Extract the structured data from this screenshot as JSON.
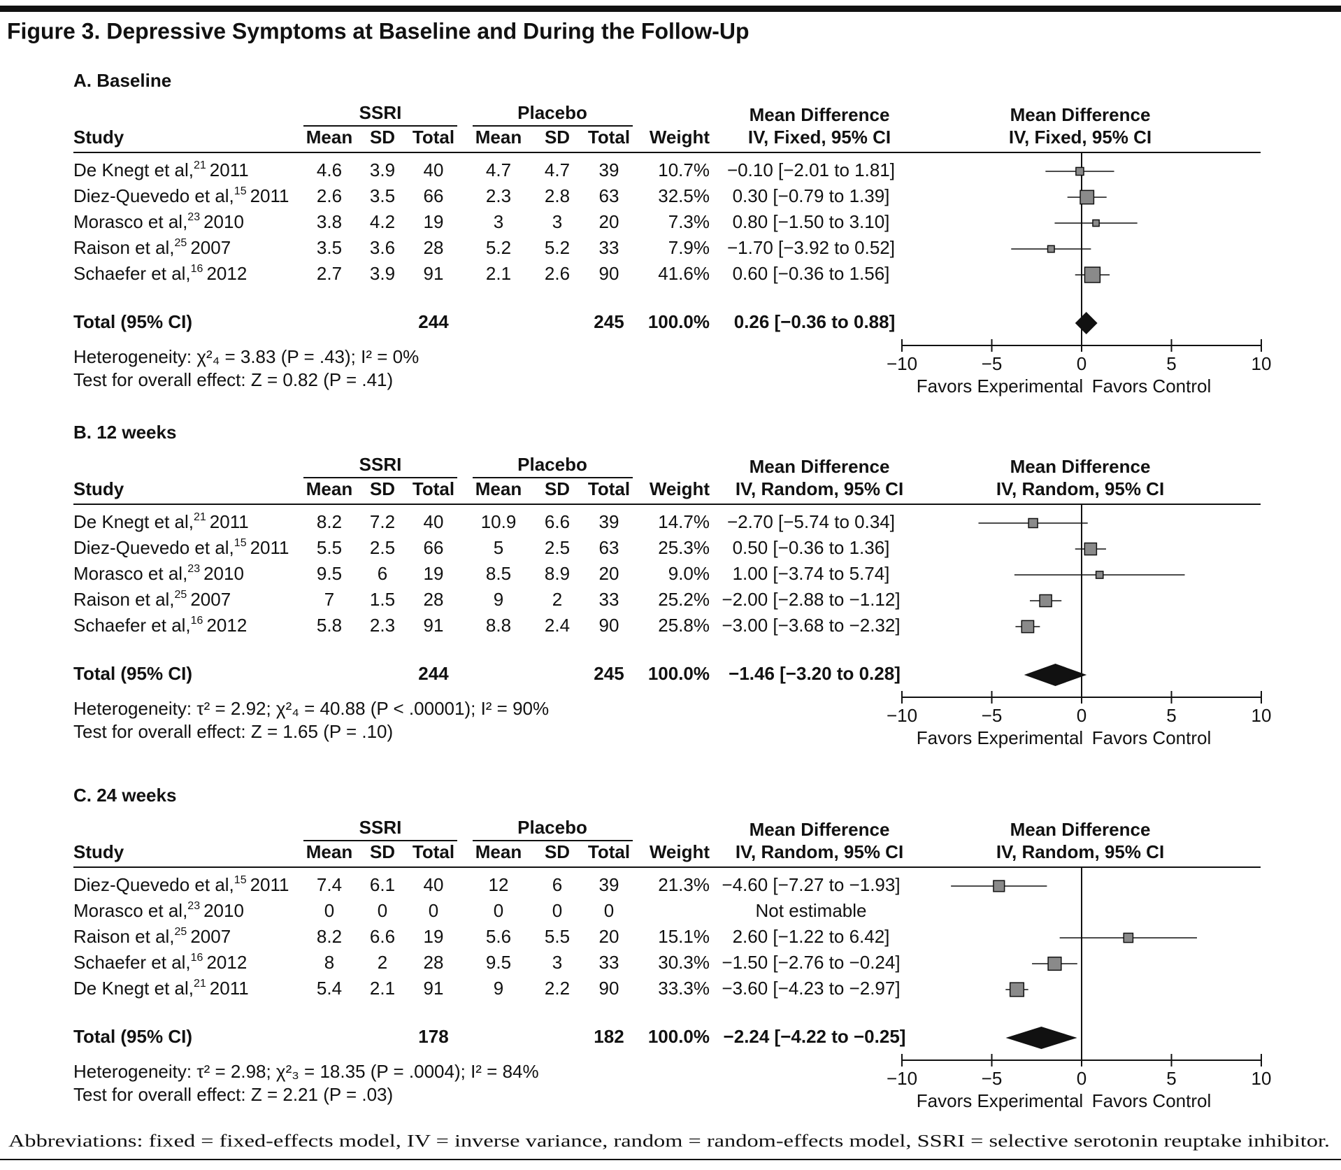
{
  "title": "Figure 3. Depressive Symptoms at Baseline and During the Follow-Up",
  "footnote": "Abbreviations: fixed = fixed-effects model, IV = inverse variance, random = random-effects model, SSRI = selective serotonin reuptake inhibitor.",
  "chart_data": [
    {
      "type": "forest",
      "title": "A. Baseline",
      "columns": {
        "study": "Study",
        "group1": "SSRI",
        "group2": "Placebo",
        "mean": "Mean",
        "sd": "SD",
        "total": "Total",
        "weight": "Weight",
        "md_title": "Mean Difference",
        "md_method": "IV, Fixed, 95% CI"
      },
      "plot_title": "Mean Difference",
      "plot_method": "IV, Fixed, 95% CI",
      "studies": [
        {
          "name": "De Knegt et al,",
          "ref": "21",
          "year": "2011",
          "ssri_mean": 4.6,
          "ssri_sd": 3.9,
          "ssri_total": 40,
          "placebo_mean": 4.7,
          "placebo_sd": 4.7,
          "placebo_total": 39,
          "weight": 10.7,
          "weight_label": "10.7%",
          "effect": -0.1,
          "lower": -2.01,
          "upper": 1.81,
          "ci_label": "−0.10 [−2.01 to 1.81]"
        },
        {
          "name": "Diez-Quevedo et al,",
          "ref": "15",
          "year": "2011",
          "ssri_mean": 2.6,
          "ssri_sd": 3.5,
          "ssri_total": 66,
          "placebo_mean": 2.3,
          "placebo_sd": 2.8,
          "placebo_total": 63,
          "weight": 32.5,
          "weight_label": "32.5%",
          "effect": 0.3,
          "lower": -0.79,
          "upper": 1.39,
          "ci_label": "0.30 [−0.79 to 1.39]"
        },
        {
          "name": "Morasco et al,",
          "ref": "23",
          "year": "2010",
          "ssri_mean": 3.8,
          "ssri_sd": 4.2,
          "ssri_total": 19,
          "placebo_mean": 3,
          "placebo_sd": 3,
          "placebo_total": 20,
          "weight": 7.3,
          "weight_label": "7.3%",
          "effect": 0.8,
          "lower": -1.5,
          "upper": 3.1,
          "ci_label": "0.80 [−1.50 to 3.10]"
        },
        {
          "name": "Raison et al,",
          "ref": "25",
          "year": "2007",
          "ssri_mean": 3.5,
          "ssri_sd": 3.6,
          "ssri_total": 28,
          "placebo_mean": 5.2,
          "placebo_sd": 5.2,
          "placebo_total": 33,
          "weight": 7.9,
          "weight_label": "7.9%",
          "effect": -1.7,
          "lower": -3.92,
          "upper": 0.52,
          "ci_label": "−1.70 [−3.92 to 0.52]"
        },
        {
          "name": "Schaefer et al,",
          "ref": "16",
          "year": "2012",
          "ssri_mean": 2.7,
          "ssri_sd": 3.9,
          "ssri_total": 91,
          "placebo_mean": 2.1,
          "placebo_sd": 2.6,
          "placebo_total": 90,
          "weight": 41.6,
          "weight_label": "41.6%",
          "effect": 0.6,
          "lower": -0.36,
          "upper": 1.56,
          "ci_label": "0.60 [−0.36 to 1.56]"
        }
      ],
      "total": {
        "label": "Total (95% CI)",
        "ssri_total": 244,
        "placebo_total": 245,
        "weight_label": "100.0%",
        "effect": 0.26,
        "lower": -0.36,
        "upper": 0.88,
        "ci_label": "0.26 [−0.36 to 0.88]"
      },
      "heterogeneity": "Heterogeneity: χ²₄ = 3.83 (P = .43); I² = 0%",
      "overall_effect": "Test for overall effect: Z = 0.82 (P = .41)",
      "xlim": [
        -10,
        10
      ],
      "xticks": [
        {
          "value": -10,
          "label": "−10"
        },
        {
          "value": -5,
          "label": "−5"
        },
        0,
        5,
        10
      ],
      "favors_left": "Favors Experimental",
      "favors_right": "Favors Control"
    },
    {
      "type": "forest",
      "title": "B. 12 weeks",
      "columns": {
        "study": "Study",
        "group1": "SSRI",
        "group2": "Placebo",
        "mean": "Mean",
        "sd": "SD",
        "total": "Total",
        "weight": "Weight",
        "md_title": "Mean Difference",
        "md_method": "IV, Random, 95% CI"
      },
      "plot_title": "Mean Difference",
      "plot_method": "IV, Random, 95% CI",
      "studies": [
        {
          "name": "De Knegt et al,",
          "ref": "21",
          "year": "2011",
          "ssri_mean": 8.2,
          "ssri_sd": 7.2,
          "ssri_total": 40,
          "placebo_mean": 10.9,
          "placebo_sd": 6.6,
          "placebo_total": 39,
          "weight": 14.7,
          "weight_label": "14.7%",
          "effect": -2.7,
          "lower": -5.74,
          "upper": 0.34,
          "ci_label": "−2.70 [−5.74 to 0.34]"
        },
        {
          "name": "Diez-Quevedo et al,",
          "ref": "15",
          "year": "2011",
          "ssri_mean": 5.5,
          "ssri_sd": 2.5,
          "ssri_total": 66,
          "placebo_mean": 5,
          "placebo_sd": 2.5,
          "placebo_total": 63,
          "weight": 25.3,
          "weight_label": "25.3%",
          "effect": 0.5,
          "lower": -0.36,
          "upper": 1.36,
          "ci_label": "0.50 [−0.36 to 1.36]"
        },
        {
          "name": "Morasco et al,",
          "ref": "23",
          "year": "2010",
          "ssri_mean": 9.5,
          "ssri_sd": 6,
          "ssri_total": 19,
          "placebo_mean": 8.5,
          "placebo_sd": 8.9,
          "placebo_total": 20,
          "weight": 9.0,
          "weight_label": "9.0%",
          "effect": 1.0,
          "lower": -3.74,
          "upper": 5.74,
          "ci_label": "1.00 [−3.74 to 5.74]"
        },
        {
          "name": "Raison et al,",
          "ref": "25",
          "year": "2007",
          "ssri_mean": 7,
          "ssri_sd": 1.5,
          "ssri_total": 28,
          "placebo_mean": 9,
          "placebo_sd": 2,
          "placebo_total": 33,
          "weight": 25.2,
          "weight_label": "25.2%",
          "effect": -2.0,
          "lower": -2.88,
          "upper": -1.12,
          "ci_label": "−2.00 [−2.88 to −1.12]"
        },
        {
          "name": "Schaefer et al,",
          "ref": "16",
          "year": "2012",
          "ssri_mean": 5.8,
          "ssri_sd": 2.3,
          "ssri_total": 91,
          "placebo_mean": 8.8,
          "placebo_sd": 2.4,
          "placebo_total": 90,
          "weight": 25.8,
          "weight_label": "25.8%",
          "effect": -3.0,
          "lower": -3.68,
          "upper": -2.32,
          "ci_label": "−3.00 [−3.68 to −2.32]"
        }
      ],
      "total": {
        "label": "Total (95% CI)",
        "ssri_total": 244,
        "placebo_total": 245,
        "weight_label": "100.0%",
        "effect": -1.46,
        "lower": -3.2,
        "upper": 0.28,
        "ci_label": "−1.46 [−3.20 to 0.28]"
      },
      "heterogeneity": "Heterogeneity: τ² = 2.92; χ²₄ = 40.88 (P < .00001); I² = 90%",
      "overall_effect": "Test for overall effect: Z = 1.65 (P = .10)",
      "xlim": [
        -10,
        10
      ],
      "xticks": [
        {
          "value": -10,
          "label": "−10"
        },
        {
          "value": -5,
          "label": "−5"
        },
        0,
        5,
        10
      ],
      "favors_left": "Favors Experimental",
      "favors_right": "Favors Control"
    },
    {
      "type": "forest",
      "title": "C. 24 weeks",
      "columns": {
        "study": "Study",
        "group1": "SSRI",
        "group2": "Placebo",
        "mean": "Mean",
        "sd": "SD",
        "total": "Total",
        "weight": "Weight",
        "md_title": "Mean Difference",
        "md_method": "IV, Random, 95% CI"
      },
      "plot_title": "Mean Difference",
      "plot_method": "IV, Random, 95% CI",
      "studies": [
        {
          "name": "Diez-Quevedo et al,",
          "ref": "15",
          "year": "2011",
          "ssri_mean": 7.4,
          "ssri_sd": 6.1,
          "ssri_total": 40,
          "placebo_mean": 12,
          "placebo_sd": 6,
          "placebo_total": 39,
          "weight": 21.3,
          "weight_label": "21.3%",
          "effect": -4.6,
          "lower": -7.27,
          "upper": -1.93,
          "ci_label": "−4.60 [−7.27 to −1.93]"
        },
        {
          "name": "Morasco et al,",
          "ref": "23",
          "year": "2010",
          "ssri_mean": 0,
          "ssri_sd": 0,
          "ssri_total": 0,
          "placebo_mean": 0,
          "placebo_sd": 0,
          "placebo_total": 0,
          "weight": null,
          "effect": null,
          "lower": null,
          "upper": null,
          "ci_label": "Not estimable"
        },
        {
          "name": "Raison et al,",
          "ref": "25",
          "year": "2007",
          "ssri_mean": 8.2,
          "ssri_sd": 6.6,
          "ssri_total": 19,
          "placebo_mean": 5.6,
          "placebo_sd": 5.5,
          "placebo_total": 20,
          "weight": 15.1,
          "weight_label": "15.1%",
          "effect": 2.6,
          "lower": -1.22,
          "upper": 6.42,
          "ci_label": "2.60 [−1.22 to 6.42]"
        },
        {
          "name": "Schaefer et al,",
          "ref": "16",
          "year": "2012",
          "ssri_mean": 8,
          "ssri_sd": 2,
          "ssri_total": 28,
          "placebo_mean": 9.5,
          "placebo_sd": 3,
          "placebo_total": 33,
          "weight": 30.3,
          "weight_label": "30.3%",
          "effect": -1.5,
          "lower": -2.76,
          "upper": -0.24,
          "ci_label": "−1.50 [−2.76 to −0.24]"
        },
        {
          "name": "De Knegt et al,",
          "ref": "21",
          "year": "2011",
          "ssri_mean": 5.4,
          "ssri_sd": 2.1,
          "ssri_total": 91,
          "placebo_mean": 9,
          "placebo_sd": 2.2,
          "placebo_total": 90,
          "weight": 33.3,
          "weight_label": "33.3%",
          "effect": -3.6,
          "lower": -4.23,
          "upper": -2.97,
          "ci_label": "−3.60 [−4.23 to −2.97]"
        }
      ],
      "total": {
        "label": "Total (95% CI)",
        "ssri_total": 178,
        "placebo_total": 182,
        "weight_label": "100.0%",
        "effect": -2.24,
        "lower": -4.22,
        "upper": -0.25,
        "ci_label": "−2.24 [−4.22 to −0.25]"
      },
      "heterogeneity": "Heterogeneity: τ² = 2.98; χ²₃ = 18.35 (P = .0004); I² = 84%",
      "overall_effect": "Test for overall effect: Z = 2.21 (P = .03)",
      "xlim": [
        -10,
        10
      ],
      "xticks": [
        {
          "value": -10,
          "label": "−10"
        },
        {
          "value": -5,
          "label": "−5"
        },
        0,
        5,
        10
      ],
      "favors_left": "Favors Experimental",
      "favors_right": "Favors Control"
    }
  ]
}
